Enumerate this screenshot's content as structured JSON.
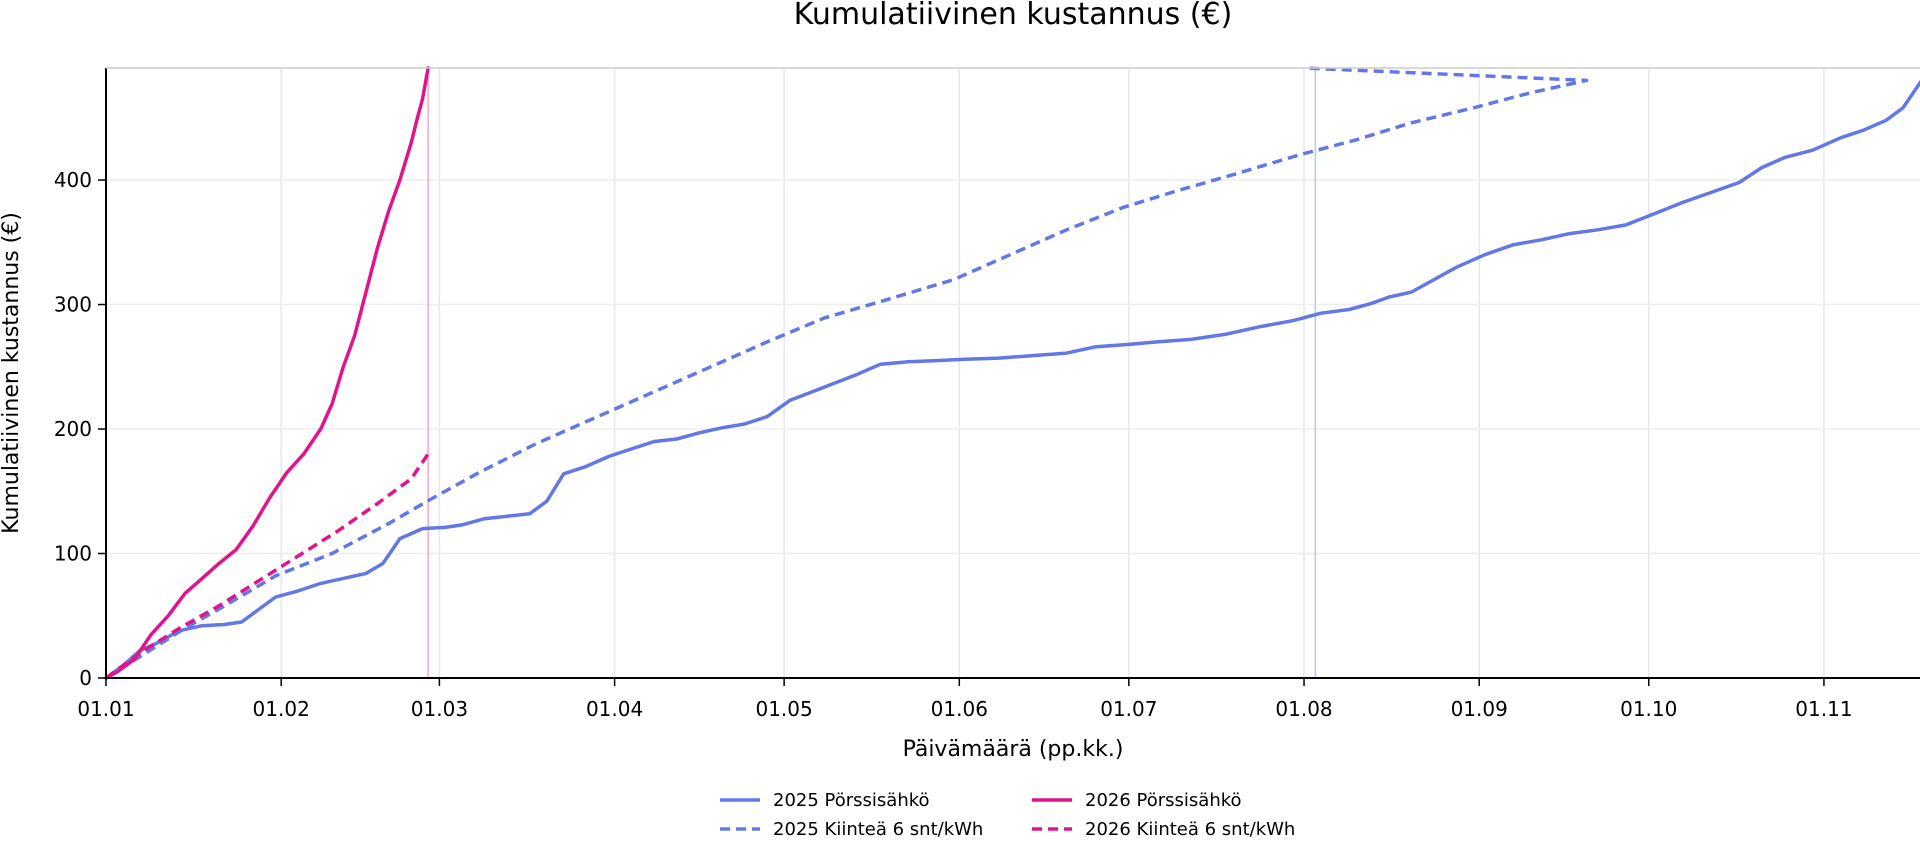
{
  "chart_data": {
    "type": "line",
    "title": "Kumulatiivinen kustannus (€)",
    "xlabel": "Päivämäärä (pp.kk.)",
    "ylabel": "Kumulatiivinen kustannus (€)",
    "x_unit": "date (dd.mm.)",
    "xlim": [
      "01.01",
      "18.11"
    ],
    "ylim": [
      0,
      490
    ],
    "xticks": [
      "01.01",
      "01.02",
      "01.03",
      "01.04",
      "01.05",
      "01.06",
      "01.07",
      "01.08",
      "01.09",
      "01.10",
      "01.11"
    ],
    "yticks": [
      0,
      100,
      200,
      300,
      400
    ],
    "grid": true,
    "legend_position": "bottom-center",
    "vlines": [
      {
        "x": "27.02",
        "color": "#f4a6c8"
      },
      {
        "x": "03.08",
        "color": "#b8c8f4"
      }
    ],
    "series": [
      {
        "name": "2025 Pörssisähkö",
        "color": "#6378e6",
        "style": "solid",
        "points": [
          [
            "01.01",
            0
          ],
          [
            "04.01",
            10
          ],
          [
            "07.01",
            22
          ],
          [
            "10.01",
            28
          ],
          [
            "14.01",
            38
          ],
          [
            "18.01",
            42
          ],
          [
            "22.01",
            43
          ],
          [
            "25.01",
            45
          ],
          [
            "28.01",
            55
          ],
          [
            "31.01",
            65
          ],
          [
            "04.02",
            70
          ],
          [
            "08.02",
            76
          ],
          [
            "12.02",
            80
          ],
          [
            "16.02",
            84
          ],
          [
            "19.02",
            92
          ],
          [
            "22.02",
            112
          ],
          [
            "26.02",
            120
          ],
          [
            "02.03",
            121
          ],
          [
            "05.03",
            123
          ],
          [
            "09.03",
            128
          ],
          [
            "13.03",
            130
          ],
          [
            "17.03",
            132
          ],
          [
            "20.03",
            142
          ],
          [
            "23.03",
            164
          ],
          [
            "27.03",
            170
          ],
          [
            "31.03",
            178
          ],
          [
            "04.04",
            184
          ],
          [
            "08.04",
            190
          ],
          [
            "12.04",
            192
          ],
          [
            "16.04",
            197
          ],
          [
            "20.04",
            201
          ],
          [
            "24.04",
            204
          ],
          [
            "28.04",
            210
          ],
          [
            "02.05",
            223
          ],
          [
            "06.05",
            230
          ],
          [
            "10.05",
            237
          ],
          [
            "14.05",
            244
          ],
          [
            "18.05",
            252
          ],
          [
            "23.05",
            254
          ],
          [
            "28.05",
            255
          ],
          [
            "02.06",
            256
          ],
          [
            "08.06",
            257
          ],
          [
            "14.06",
            259
          ],
          [
            "20.06",
            261
          ],
          [
            "25.06",
            266
          ],
          [
            "01.07",
            268
          ],
          [
            "06.07",
            270
          ],
          [
            "12.07",
            272
          ],
          [
            "18.07",
            276
          ],
          [
            "24.07",
            282
          ],
          [
            "30.07",
            287
          ],
          [
            "04.08",
            293
          ],
          [
            "09.08",
            296
          ],
          [
            "13.08",
            301
          ],
          [
            "16.08",
            306
          ],
          [
            "20.08",
            310
          ],
          [
            "24.08",
            320
          ],
          [
            "28.08",
            330
          ],
          [
            "02.09",
            340
          ],
          [
            "07.09",
            348
          ],
          [
            "12.09",
            352
          ],
          [
            "17.09",
            357
          ],
          [
            "22.09",
            360
          ],
          [
            "27.09",
            364
          ],
          [
            "02.10",
            373
          ],
          [
            "07.10",
            382
          ],
          [
            "12.10",
            390
          ],
          [
            "17.10",
            398
          ],
          [
            "21.10",
            410
          ],
          [
            "25.10",
            418
          ],
          [
            "30.10",
            424
          ],
          [
            "04.11",
            434
          ],
          [
            "08.11",
            440
          ],
          [
            "12.11",
            448
          ],
          [
            "15.11",
            458
          ],
          [
            "18.11",
            478
          ],
          [
            "20.11",
            490
          ]
        ]
      },
      {
        "name": "2025 Kiinteä 6 snt/kWh",
        "color": "#6378e6",
        "style": "dashed",
        "points": [
          [
            "01.01",
            0
          ],
          [
            "08.01",
            20
          ],
          [
            "15.01",
            40
          ],
          [
            "22.01",
            58
          ],
          [
            "31.01",
            82
          ],
          [
            "10.02",
            100
          ],
          [
            "20.02",
            124
          ],
          [
            "28.02",
            145
          ],
          [
            "08.03",
            165
          ],
          [
            "18.03",
            188
          ],
          [
            "28.03",
            208
          ],
          [
            "08.04",
            230
          ],
          [
            "18.04",
            250
          ],
          [
            "28.04",
            270
          ],
          [
            "08.05",
            289
          ],
          [
            "20.05",
            305
          ],
          [
            "31.05",
            320
          ],
          [
            "10.06",
            340
          ],
          [
            "20.06",
            360
          ],
          [
            "30.06",
            378
          ],
          [
            "10.07",
            392
          ],
          [
            "20.07",
            405
          ],
          [
            "31.07",
            420
          ],
          [
            "10.08",
            432
          ],
          [
            "20.08",
            446
          ],
          [
            "31.08",
            458
          ],
          [
            "10.09",
            470
          ],
          [
            "20.09",
            480
          ],
          [
            "01.08",
            490
          ]
        ]
      },
      {
        "name": "2026 Pörssisähkö",
        "color": "#e0148c",
        "style": "solid",
        "points": [
          [
            "01.01",
            0
          ],
          [
            "03.01",
            5
          ],
          [
            "06.01",
            15
          ],
          [
            "09.01",
            35
          ],
          [
            "12.01",
            50
          ],
          [
            "15.01",
            68
          ],
          [
            "18.01",
            80
          ],
          [
            "21.01",
            92
          ],
          [
            "24.01",
            103
          ],
          [
            "27.01",
            122
          ],
          [
            "30.01",
            145
          ],
          [
            "02.02",
            165
          ],
          [
            "05.02",
            180
          ],
          [
            "08.02",
            200
          ],
          [
            "10.02",
            220
          ],
          [
            "12.02",
            250
          ],
          [
            "14.02",
            275
          ],
          [
            "16.02",
            310
          ],
          [
            "18.02",
            345
          ],
          [
            "20.02",
            375
          ],
          [
            "22.02",
            400
          ],
          [
            "24.02",
            430
          ],
          [
            "25.02",
            448
          ],
          [
            "26.02",
            465
          ],
          [
            "27.02",
            490
          ]
        ]
      },
      {
        "name": "2026 Kiinteä 6 snt/kWh",
        "color": "#e0148c",
        "style": "dashed",
        "points": [
          [
            "01.01",
            0
          ],
          [
            "07.01",
            20
          ],
          [
            "14.01",
            40
          ],
          [
            "21.01",
            58
          ],
          [
            "28.01",
            78
          ],
          [
            "04.02",
            98
          ],
          [
            "11.02",
            118
          ],
          [
            "18.02",
            140
          ],
          [
            "24.02",
            160
          ],
          [
            "27.02",
            180
          ]
        ]
      }
    ]
  }
}
